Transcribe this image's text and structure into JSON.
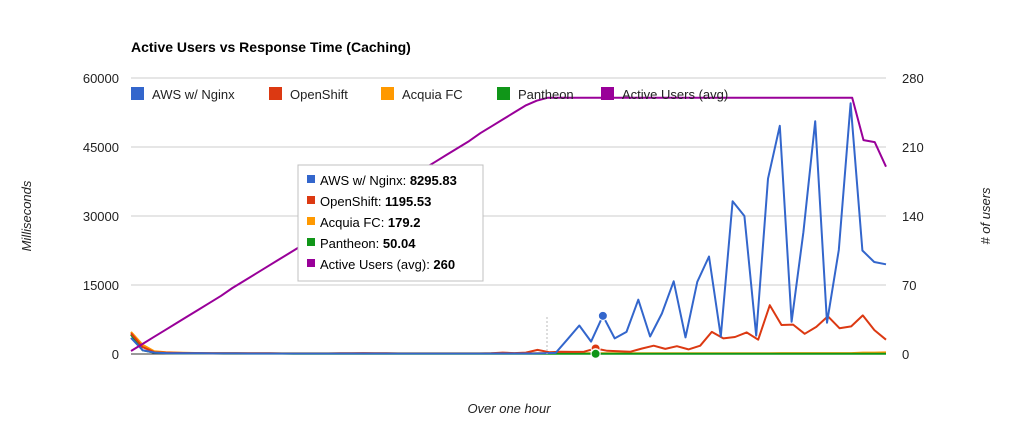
{
  "chart_data": {
    "type": "line",
    "title": "Active Users vs Response Time (Caching)",
    "xlabel": "Over one hour",
    "ylabel": "Milliseconds",
    "y2label": "# of users",
    "ylim": [
      0,
      60000
    ],
    "y2lim": [
      0,
      280
    ],
    "yticks": [
      "0",
      "15000",
      "30000",
      "45000",
      "60000"
    ],
    "y2ticks": [
      "0",
      "70",
      "140",
      "210",
      "280"
    ],
    "grid": true,
    "legend_position": "top",
    "series": [
      {
        "name": "AWS w/ Nginx",
        "color": "#3366cc",
        "axis": "left",
        "values": [
          3500,
          800,
          300,
          200,
          150,
          150,
          150,
          120,
          120,
          120,
          100,
          100,
          100,
          100,
          100,
          100,
          100,
          100,
          100,
          100,
          100,
          100,
          100,
          100,
          100,
          100,
          100,
          100,
          100,
          100,
          100,
          100,
          100,
          100,
          100,
          150,
          250,
          3200,
          6200,
          2700,
          8296,
          3400,
          4800,
          11800,
          3800,
          8800,
          15800,
          3600,
          15700,
          21200,
          3800,
          33200,
          30000,
          4000,
          38100,
          49600,
          7000,
          26500,
          50600,
          6800,
          22600,
          54500,
          22500,
          20000,
          19500
        ]
      },
      {
        "name": "OpenShift",
        "color": "#dc3912",
        "axis": "left",
        "values": [
          4500,
          1500,
          400,
          300,
          250,
          200,
          200,
          150,
          150,
          150,
          150,
          150,
          150,
          100,
          100,
          100,
          100,
          100,
          150,
          150,
          200,
          150,
          150,
          100,
          100,
          100,
          100,
          100,
          100,
          100,
          100,
          150,
          300,
          200,
          300,
          900,
          400,
          500,
          450,
          500,
          1196,
          700,
          600,
          500,
          1200,
          1800,
          1100,
          1700,
          1000,
          1800,
          4800,
          3400,
          3700,
          4700,
          3100,
          10600,
          6300,
          6400,
          4400,
          5900,
          8200,
          5600,
          6000,
          8400,
          5200,
          3100
        ]
      },
      {
        "name": "Acquia FC",
        "color": "#ff9900",
        "axis": "left",
        "values": [
          4800,
          2000,
          600,
          400,
          300,
          250,
          200,
          200,
          200,
          200,
          180,
          180,
          180,
          180,
          180,
          180,
          180,
          180,
          180,
          180,
          180,
          180,
          180,
          180,
          180,
          180,
          180,
          180,
          180,
          180,
          180,
          180,
          180,
          180,
          180,
          180,
          180,
          180,
          180,
          180,
          179,
          180,
          180,
          180,
          180,
          180,
          180,
          180,
          180,
          180,
          180,
          180,
          180,
          180,
          180,
          180,
          200,
          200,
          200,
          200,
          200,
          200,
          200,
          300,
          300,
          350
        ]
      },
      {
        "name": "Pantheon",
        "color": "#109618",
        "axis": "left",
        "values": [
          4200,
          800,
          300,
          200,
          150,
          120,
          100,
          100,
          80,
          80,
          80,
          80,
          80,
          80,
          60,
          60,
          60,
          60,
          60,
          60,
          60,
          60,
          60,
          60,
          60,
          60,
          60,
          60,
          60,
          60,
          60,
          60,
          60,
          60,
          60,
          60,
          60,
          60,
          60,
          60,
          50,
          50,
          50,
          50,
          50,
          50,
          50,
          50,
          50,
          50,
          50,
          50,
          50,
          50,
          50,
          50,
          50,
          50,
          50,
          50,
          50,
          50,
          50,
          50,
          50,
          50
        ]
      },
      {
        "name": "Active Users (avg)",
        "color": "#990099",
        "axis": "right",
        "values": [
          3,
          10,
          17,
          24,
          31,
          38,
          45,
          52,
          59,
          67,
          74,
          81,
          88,
          95,
          102,
          109,
          116,
          124,
          131,
          138,
          145,
          152,
          159,
          166,
          173,
          180,
          188,
          195,
          202,
          209,
          216,
          224,
          231,
          238,
          245,
          252,
          257,
          260,
          260,
          260,
          260,
          260,
          260,
          260,
          260,
          260,
          260,
          260,
          260,
          260,
          260,
          260,
          260,
          260,
          260,
          260,
          260,
          260,
          260,
          260,
          260,
          260,
          260,
          260,
          260,
          217,
          215,
          190
        ]
      }
    ],
    "tooltip": {
      "items": [
        {
          "label": "AWS w/ Nginx: ",
          "value": "8295.83",
          "color": "#3366cc"
        },
        {
          "label": "OpenShift: ",
          "value": "1195.53",
          "color": "#dc3912"
        },
        {
          "label": "Acquia FC: ",
          "value": "179.2",
          "color": "#ff9900"
        },
        {
          "label": "Pantheon: ",
          "value": "50.04",
          "color": "#109618"
        },
        {
          "label": "Active Users (avg): ",
          "value": "260",
          "color": "#990099"
        }
      ]
    }
  }
}
